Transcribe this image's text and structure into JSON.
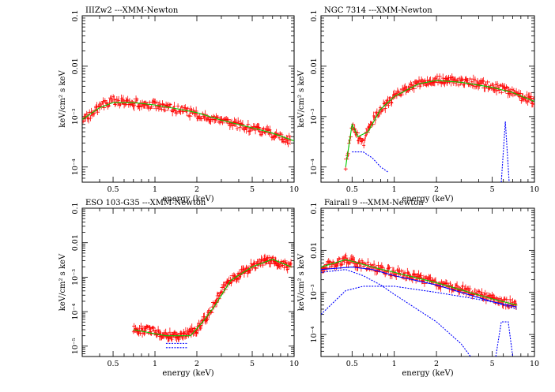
{
  "chart_data": [
    {
      "type": "scatter",
      "title": "IIIZw2  ---XMM-Newton",
      "xlabel": "energy (keV)",
      "ylabel": "keV/cm² s keV",
      "xscale": "log",
      "yscale": "log",
      "xlim": [
        0.3,
        10
      ],
      "ylim": [
        5e-05,
        0.1
      ],
      "xticks": [
        "0.5",
        "1",
        "2",
        "5",
        "10"
      ],
      "yticks": [
        "10⁻⁴",
        "10⁻³",
        "0.01",
        "0.1"
      ],
      "colors": {
        "data": "#ff0000",
        "model": "#00cc00",
        "component": "#0000ff"
      },
      "data_points": {
        "color": "#ff0000",
        "x_range": [
          0.3,
          9.5
        ],
        "points": [
          [
            0.3,
            0.00085
          ],
          [
            0.35,
            0.0011
          ],
          [
            0.4,
            0.0015
          ],
          [
            0.45,
            0.0019
          ],
          [
            0.5,
            0.0021
          ],
          [
            0.6,
            0.0019
          ],
          [
            0.7,
            0.0019
          ],
          [
            0.8,
            0.0018
          ],
          [
            1.0,
            0.0017
          ],
          [
            1.3,
            0.0015
          ],
          [
            1.6,
            0.0013
          ],
          [
            2.0,
            0.0011
          ],
          [
            2.5,
            0.00095
          ],
          [
            3.0,
            0.00082
          ],
          [
            4.0,
            0.00068
          ],
          [
            5.0,
            0.00058
          ],
          [
            6.0,
            0.0005
          ],
          [
            7.0,
            0.00045
          ],
          [
            8.0,
            0.0004
          ],
          [
            9.5,
            0.00034
          ]
        ]
      },
      "models": [
        {
          "color": "#00cc00",
          "points": [
            [
              0.3,
              0.00088
            ],
            [
              0.4,
              0.0015
            ],
            [
              0.5,
              0.0019
            ],
            [
              0.7,
              0.0019
            ],
            [
              1.0,
              0.0017
            ],
            [
              1.5,
              0.0014
            ],
            [
              2.0,
              0.0012
            ],
            [
              3.0,
              0.00085
            ],
            [
              5.0,
              0.0006
            ],
            [
              7.0,
              0.00047
            ],
            [
              10.0,
              0.00033
            ]
          ]
        }
      ]
    },
    {
      "type": "scatter",
      "title": "NGC 7314  ---XMM-Newton",
      "xlabel": "energy (keV)",
      "ylabel": "keV/cm² s keV",
      "xscale": "log",
      "yscale": "log",
      "xlim": [
        0.3,
        10
      ],
      "ylim": [
        5e-05,
        0.1
      ],
      "xticks": [
        "0.5",
        "1",
        "2",
        "5",
        "10"
      ],
      "yticks": [
        "10⁻⁴",
        "10⁻³",
        "0.01",
        "0.1"
      ],
      "colors": {
        "data": "#ff0000",
        "model": "#00cc00",
        "component": "#0000ff"
      },
      "data_points": {
        "color": "#ff0000",
        "x_range": [
          0.45,
          10
        ],
        "points": [
          [
            0.45,
            0.0001
          ],
          [
            0.5,
            0.0007
          ],
          [
            0.55,
            0.0004
          ],
          [
            0.6,
            0.0003
          ],
          [
            0.7,
            0.0008
          ],
          [
            0.8,
            0.0015
          ],
          [
            0.9,
            0.0018
          ],
          [
            1.0,
            0.0025
          ],
          [
            1.2,
            0.0035
          ],
          [
            1.5,
            0.0045
          ],
          [
            2.0,
            0.0055
          ],
          [
            3.0,
            0.005
          ],
          [
            4.0,
            0.0045
          ],
          [
            5.0,
            0.004
          ],
          [
            6.0,
            0.0035
          ],
          [
            7.0,
            0.003
          ],
          [
            8.0,
            0.0025
          ],
          [
            10.0,
            0.002
          ]
        ]
      },
      "models": [
        {
          "color": "#00cc00",
          "points": [
            [
              0.45,
              0.0001
            ],
            [
              0.5,
              0.0007
            ],
            [
              0.55,
              0.0004
            ],
            [
              0.65,
              0.0005
            ],
            [
              0.8,
              0.0014
            ],
            [
              1.0,
              0.0025
            ],
            [
              1.5,
              0.0045
            ],
            [
              2.0,
              0.0052
            ],
            [
              3.0,
              0.0048
            ],
            [
              5.0,
              0.0038
            ],
            [
              7.0,
              0.003
            ],
            [
              10.0,
              0.002
            ]
          ]
        },
        {
          "color": "#0000ff",
          "dash": true,
          "points": [
            [
              0.5,
              0.0002
            ],
            [
              0.6,
              0.0002
            ],
            [
              0.7,
              0.00015
            ],
            [
              0.8,
              0.0001
            ],
            [
              0.9,
              8e-05
            ]
          ]
        },
        {
          "color": "#0000ff",
          "dash": true,
          "points": [
            [
              5.8,
              5e-05
            ],
            [
              6.2,
              0.0008
            ],
            [
              6.6,
              5e-05
            ]
          ]
        }
      ]
    },
    {
      "type": "scatter",
      "title": "ESO 103-G35  ---XMM-Newton",
      "xlabel": "energy (keV)",
      "ylabel": "keV/cm² s keV",
      "xscale": "log",
      "yscale": "log",
      "xlim": [
        0.3,
        10
      ],
      "ylim": [
        5e-06,
        0.1
      ],
      "xticks": [
        "0.5",
        "1",
        "2",
        "5",
        "10"
      ],
      "yticks": [
        "10⁻⁵",
        "10⁻⁴",
        "10⁻³",
        "0.01",
        "0.1"
      ],
      "colors": {
        "data": "#ff0000",
        "model": "#00cc00",
        "component": "#0000ff"
      },
      "data_points": {
        "color": "#ff0000",
        "x_range": [
          0.7,
          9.5
        ],
        "points": [
          [
            0.7,
            3e-05
          ],
          [
            0.9,
            3e-05
          ],
          [
            1.2,
            2e-05
          ],
          [
            1.6,
            2e-05
          ],
          [
            2.0,
            3e-05
          ],
          [
            2.2,
            5e-05
          ],
          [
            2.5,
            0.0001
          ],
          [
            3.0,
            0.0004
          ],
          [
            3.5,
            0.0008
          ],
          [
            4.0,
            0.0012
          ],
          [
            5.0,
            0.002
          ],
          [
            6.0,
            0.0028
          ],
          [
            7.0,
            0.0032
          ],
          [
            8.0,
            0.0025
          ],
          [
            9.5,
            0.002
          ]
        ]
      },
      "models": [
        {
          "color": "#00cc00",
          "points": [
            [
              0.7,
              3e-05
            ],
            [
              1.2,
              2e-05
            ],
            [
              1.8,
              2e-05
            ],
            [
              2.2,
              5e-05
            ],
            [
              2.7,
              0.00015
            ],
            [
              3.5,
              0.0008
            ],
            [
              5.0,
              0.002
            ],
            [
              7.0,
              0.0033
            ],
            [
              9.5,
              0.002
            ]
          ]
        },
        {
          "color": "#0000ff",
          "dash": true,
          "points": [
            [
              1.2,
              1.2e-05
            ],
            [
              1.7,
              1.2e-05
            ]
          ]
        },
        {
          "color": "#0000ff",
          "dash": true,
          "points": [
            [
              1.2,
              9e-06
            ],
            [
              1.7,
              9e-06
            ]
          ]
        }
      ]
    },
    {
      "type": "scatter",
      "title": "Fairall 9  ---XMM-Newton",
      "xlabel": "energy (keV)",
      "ylabel": "keV/cm² s keV",
      "xscale": "log",
      "yscale": "log",
      "xlim": [
        0.3,
        10
      ],
      "ylim": [
        3e-05,
        0.1
      ],
      "xticks": [
        "0.5",
        "1",
        "2",
        "5",
        "10"
      ],
      "yticks": [
        "10⁻⁴",
        "10⁻³",
        "0.01",
        "0.1"
      ],
      "colors": {
        "data": "#ff0000",
        "model": "#00cc00",
        "component": "#0000ff"
      },
      "data_points": {
        "color": "#ff0000",
        "x_range": [
          0.3,
          7.5
        ],
        "points": [
          [
            0.3,
            0.004
          ],
          [
            0.35,
            0.0045
          ],
          [
            0.4,
            0.005
          ],
          [
            0.45,
            0.006
          ],
          [
            0.5,
            0.0055
          ],
          [
            0.6,
            0.0045
          ],
          [
            0.7,
            0.004
          ],
          [
            0.8,
            0.0035
          ],
          [
            1.0,
            0.003
          ],
          [
            1.3,
            0.0025
          ],
          [
            1.6,
            0.002
          ],
          [
            2.0,
            0.0017
          ],
          [
            3.0,
            0.0012
          ],
          [
            4.0,
            0.0009
          ],
          [
            5.0,
            0.0007
          ],
          [
            6.0,
            0.0006
          ],
          [
            7.5,
            0.0005
          ]
        ]
      },
      "models": [
        {
          "color": "#00cc00",
          "points": [
            [
              0.3,
              0.004
            ],
            [
              0.45,
              0.006
            ],
            [
              0.5,
              0.0055
            ],
            [
              0.7,
              0.004
            ],
            [
              1.0,
              0.003
            ],
            [
              2.0,
              0.0017
            ],
            [
              5.0,
              0.0007
            ],
            [
              7.5,
              0.0005
            ]
          ]
        },
        {
          "color": "#0000ff",
          "points": [
            [
              0.3,
              0.0035
            ],
            [
              0.5,
              0.004
            ],
            [
              0.7,
              0.0035
            ],
            [
              1.0,
              0.0025
            ],
            [
              2.0,
              0.0015
            ],
            [
              5.0,
              0.0006
            ],
            [
              7.5,
              0.00045
            ]
          ]
        },
        {
          "color": "#0000ff",
          "dash": true,
          "points": [
            [
              0.3,
              0.003
            ],
            [
              0.45,
              0.0035
            ],
            [
              0.6,
              0.0025
            ],
            [
              0.8,
              0.0015
            ],
            [
              1.0,
              0.0009
            ],
            [
              2.0,
              0.0002
            ],
            [
              3.0,
              6e-05
            ],
            [
              3.5,
              3e-05
            ]
          ]
        },
        {
          "color": "#0000ff",
          "dash": true,
          "points": [
            [
              0.3,
              0.0003
            ],
            [
              0.45,
              0.0011
            ],
            [
              0.5,
              0.0012
            ],
            [
              0.6,
              0.0014
            ],
            [
              1.0,
              0.0014
            ],
            [
              2.0,
              0.001
            ],
            [
              3.0,
              0.0008
            ],
            [
              5.0,
              0.0006
            ],
            [
              7.5,
              0.0004
            ]
          ]
        },
        {
          "color": "#0000ff",
          "dash": true,
          "points": [
            [
              5.3,
              3e-05
            ],
            [
              5.8,
              0.0002
            ],
            [
              6.5,
              0.0002
            ],
            [
              7.0,
              3e-05
            ]
          ]
        }
      ]
    }
  ]
}
